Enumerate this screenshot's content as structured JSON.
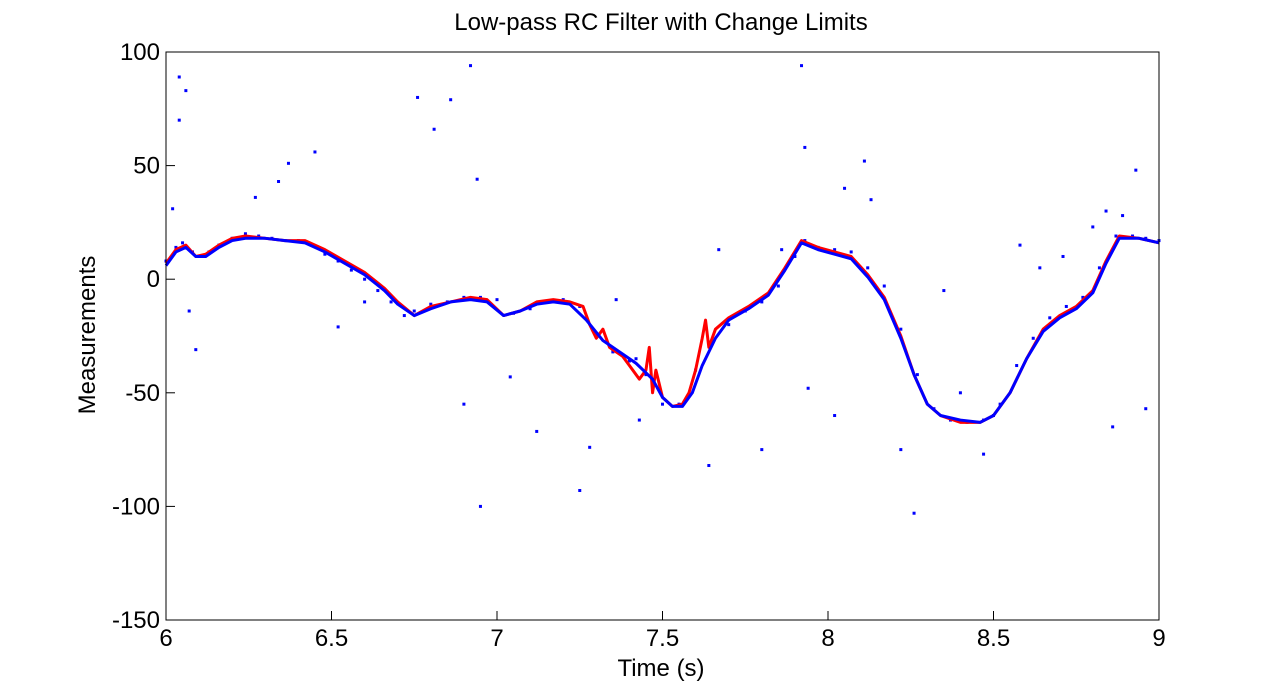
{
  "chart_data": {
    "type": "line",
    "title": "Low-pass RC Filter with Change Limits",
    "xlabel": "Time (s)",
    "ylabel": "Measurements",
    "xlim": [
      6,
      9
    ],
    "ylim": [
      -150,
      100
    ],
    "x_ticks": [
      6,
      6.5,
      7,
      7.5,
      8,
      8.5,
      9
    ],
    "x_tick_labels": [
      "6",
      "6.5",
      "7",
      "7.5",
      "8",
      "8.5",
      "9"
    ],
    "y_ticks": [
      -150,
      -100,
      -50,
      0,
      50,
      100
    ],
    "y_tick_labels": [
      "-150",
      "-100",
      "-50",
      "0",
      "50",
      "100"
    ],
    "grid": false,
    "legend": "none",
    "series": [
      {
        "kind": "scatter",
        "color": "#0000ff",
        "marker": "dot",
        "x": [
          6.0,
          6.03,
          6.05,
          6.08,
          6.1,
          6.13,
          6.16,
          6.2,
          6.24,
          6.28,
          6.32,
          6.36,
          6.4,
          6.44,
          6.48,
          6.52,
          6.56,
          6.6,
          6.64,
          6.68,
          6.72,
          6.75,
          6.8,
          6.85,
          6.9,
          6.95,
          7.0,
          7.05,
          7.1,
          7.15,
          7.2,
          7.25,
          7.3,
          7.35,
          7.4,
          7.45,
          7.5,
          7.55,
          7.6,
          7.65,
          7.7,
          7.75,
          7.8,
          7.85,
          7.9,
          7.93,
          7.97,
          8.02,
          8.07,
          8.12,
          8.17,
          8.22,
          8.27,
          8.32,
          8.37,
          8.42,
          8.47,
          8.52,
          8.57,
          8.62,
          8.67,
          8.72,
          8.77,
          8.82,
          8.87,
          8.92,
          8.96,
          9.0,
          6.04,
          6.06,
          6.02,
          6.04,
          6.07,
          6.09,
          6.37,
          6.45,
          6.76,
          6.81,
          6.86,
          6.92,
          6.94,
          6.95,
          7.25,
          7.43,
          7.92,
          7.93,
          7.94,
          8.05,
          8.11,
          8.26,
          8.47,
          8.86,
          8.93,
          8.96,
          6.27,
          6.34,
          6.52,
          6.6,
          6.9,
          7.04,
          7.12,
          7.28,
          7.36,
          7.42,
          7.64,
          7.67,
          7.8,
          7.86,
          8.02,
          8.13,
          8.22,
          8.35,
          8.4,
          8.5,
          8.58,
          8.64,
          8.71,
          8.8,
          8.84,
          8.89
        ],
        "y": [
          8,
          14,
          16,
          12,
          10,
          12,
          15,
          18,
          20,
          19,
          18,
          17,
          17,
          15,
          11,
          8,
          4,
          0,
          -5,
          -10,
          -16,
          -14,
          -11,
          -10,
          -8,
          -8,
          -9,
          -15,
          -13,
          -10,
          -9,
          -12,
          -25,
          -32,
          -36,
          -42,
          -55,
          -55,
          -40,
          -28,
          -20,
          -14,
          -10,
          -3,
          10,
          17,
          14,
          13,
          12,
          5,
          -3,
          -22,
          -42,
          -57,
          -62,
          -63,
          -62,
          -55,
          -38,
          -26,
          -17,
          -12,
          -8,
          5,
          19,
          19,
          18,
          17,
          89,
          83,
          31,
          70,
          -14,
          -31,
          51,
          56,
          80,
          66,
          79,
          94,
          44,
          -100,
          -93,
          -62,
          94,
          58,
          -48,
          40,
          52,
          -103,
          -77,
          -65,
          48,
          -57,
          36,
          43,
          -21,
          -10,
          -55,
          -43,
          -67,
          -74,
          -9,
          -35,
          -82,
          13,
          -75,
          13,
          -60,
          35,
          -75,
          -5,
          -50,
          -60,
          15,
          5,
          10,
          23,
          30,
          28
        ]
      },
      {
        "kind": "line",
        "color": "#ff0000",
        "x": [
          6.0,
          6.03,
          6.06,
          6.09,
          6.12,
          6.16,
          6.2,
          6.24,
          6.3,
          6.36,
          6.42,
          6.48,
          6.54,
          6.6,
          6.66,
          6.7,
          6.75,
          6.8,
          6.86,
          6.92,
          6.97,
          7.02,
          7.07,
          7.12,
          7.17,
          7.22,
          7.26,
          7.27,
          7.28,
          7.3,
          7.32,
          7.33,
          7.34,
          7.36,
          7.38,
          7.4,
          7.43,
          7.45,
          7.46,
          7.47,
          7.48,
          7.5,
          7.53,
          7.56,
          7.58,
          7.6,
          7.62,
          7.63,
          7.64,
          7.66,
          7.7,
          7.76,
          7.82,
          7.87,
          7.92,
          7.97,
          8.02,
          8.07,
          8.12,
          8.17,
          8.22,
          8.26,
          8.3,
          8.34,
          8.4,
          8.46,
          8.5,
          8.55,
          8.6,
          8.65,
          8.7,
          8.75,
          8.8,
          8.84,
          8.88,
          8.94,
          9.0
        ],
        "y": [
          7,
          13,
          15,
          10,
          11,
          15,
          18,
          19,
          18,
          17,
          17,
          13,
          8,
          3,
          -4,
          -10,
          -16,
          -12,
          -10,
          -8,
          -9,
          -16,
          -14,
          -10,
          -9,
          -10,
          -12,
          -16,
          -20,
          -26,
          -22,
          -26,
          -30,
          -32,
          -34,
          -38,
          -44,
          -40,
          -30,
          -50,
          -40,
          -52,
          -56,
          -55,
          -50,
          -40,
          -26,
          -18,
          -30,
          -22,
          -17,
          -12,
          -6,
          5,
          17,
          14,
          12,
          10,
          2,
          -8,
          -25,
          -42,
          -55,
          -60,
          -63,
          -63,
          -60,
          -50,
          -35,
          -22,
          -16,
          -12,
          -5,
          8,
          19,
          18,
          16
        ]
      },
      {
        "kind": "line",
        "color": "#0000ff",
        "x": [
          6.0,
          6.03,
          6.06,
          6.09,
          6.12,
          6.16,
          6.2,
          6.24,
          6.3,
          6.36,
          6.42,
          6.48,
          6.54,
          6.6,
          6.66,
          6.7,
          6.75,
          6.8,
          6.86,
          6.92,
          6.97,
          7.02,
          7.07,
          7.12,
          7.17,
          7.22,
          7.27,
          7.32,
          7.37,
          7.42,
          7.47,
          7.5,
          7.53,
          7.56,
          7.59,
          7.62,
          7.66,
          7.7,
          7.76,
          7.82,
          7.87,
          7.92,
          7.97,
          8.02,
          8.07,
          8.12,
          8.17,
          8.22,
          8.26,
          8.3,
          8.34,
          8.4,
          8.46,
          8.5,
          8.55,
          8.6,
          8.65,
          8.7,
          8.75,
          8.8,
          8.84,
          8.88,
          8.94,
          9.0
        ],
        "y": [
          6,
          12,
          14,
          10,
          10,
          14,
          17,
          18,
          18,
          17,
          16,
          12,
          7,
          2,
          -5,
          -11,
          -16,
          -13,
          -10,
          -9,
          -10,
          -16,
          -14,
          -11,
          -10,
          -11,
          -18,
          -27,
          -32,
          -37,
          -44,
          -52,
          -56,
          -56,
          -50,
          -38,
          -26,
          -18,
          -13,
          -7,
          4,
          16,
          13,
          11,
          9,
          1,
          -9,
          -26,
          -42,
          -55,
          -60,
          -62,
          -63,
          -60,
          -50,
          -35,
          -23,
          -17,
          -13,
          -6,
          7,
          18,
          18,
          16
        ]
      }
    ]
  }
}
